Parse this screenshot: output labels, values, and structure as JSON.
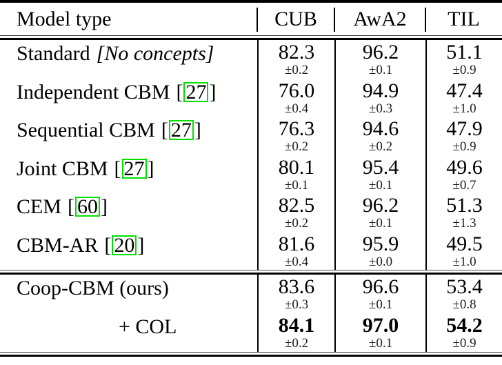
{
  "colors": {
    "cite_box_border": "#00e000",
    "rule": "#000000",
    "background": "#ffffff"
  },
  "table": {
    "cite_brackets": {
      "open": "[",
      "close": "]"
    },
    "columns": [
      "Model type",
      "CUB",
      "AwA2",
      "TIL"
    ],
    "sections": [
      {
        "rows": [
          {
            "label": "Standard",
            "note": "[No concepts]",
            "cub": {
              "v": "82.3",
              "s": "±0.2"
            },
            "awa2": {
              "v": "96.2",
              "s": "±0.1"
            },
            "til": {
              "v": "51.1",
              "s": "±0.9"
            }
          },
          {
            "label": "Independent CBM",
            "cite": "27",
            "cub": {
              "v": "76.0",
              "s": "±0.4"
            },
            "awa2": {
              "v": "94.9",
              "s": "±0.3"
            },
            "til": {
              "v": "47.4",
              "s": "±1.0"
            }
          },
          {
            "label": "Sequential CBM",
            "cite": "27",
            "cub": {
              "v": "76.3",
              "s": "±0.2"
            },
            "awa2": {
              "v": "94.6",
              "s": "±0.2"
            },
            "til": {
              "v": "47.9",
              "s": "±0.9"
            }
          },
          {
            "label": "Joint CBM",
            "cite": "27",
            "cub": {
              "v": "80.1",
              "s": "±0.1"
            },
            "awa2": {
              "v": "95.4",
              "s": "±0.1"
            },
            "til": {
              "v": "49.6",
              "s": "±0.7"
            }
          },
          {
            "label": "CEM",
            "cite": "60",
            "cub": {
              "v": "82.5",
              "s": "±0.2"
            },
            "awa2": {
              "v": "96.2",
              "s": "±0.1"
            },
            "til": {
              "v": "51.3",
              "s": "±1.3"
            }
          },
          {
            "label": "CBM-AR",
            "cite": "20",
            "cub": {
              "v": "81.6",
              "s": "±0.4"
            },
            "awa2": {
              "v": "95.9",
              "s": "±0.0"
            },
            "til": {
              "v": "49.5",
              "s": "±1.0"
            }
          }
        ]
      },
      {
        "rows": [
          {
            "label": "Coop-CBM (ours)",
            "bold": false,
            "cub": {
              "v": "83.6",
              "s": "±0.3"
            },
            "awa2": {
              "v": "96.6",
              "s": "±0.1"
            },
            "til": {
              "v": "53.4",
              "s": "±0.8"
            }
          },
          {
            "label": "+ COL",
            "bold": true,
            "cub": {
              "v": "84.1",
              "s": "±0.2"
            },
            "awa2": {
              "v": "97.0",
              "s": "±0.1"
            },
            "til": {
              "v": "54.2",
              "s": "±0.9"
            }
          }
        ]
      }
    ]
  }
}
